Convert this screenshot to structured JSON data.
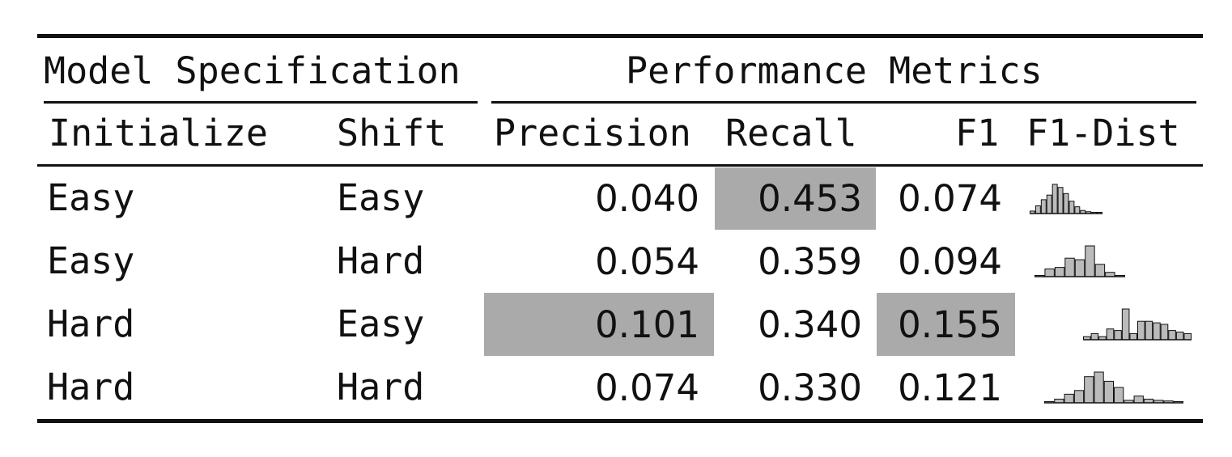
{
  "table": {
    "group_headers": [
      "Model Specification",
      "Performance Metrics"
    ],
    "columns": [
      "Initialize",
      "Shift",
      "Precision",
      "Recall",
      "F1",
      "F1-Dist"
    ],
    "rows": [
      {
        "initialize": "Easy",
        "shift": "Easy",
        "precision": "0.040",
        "recall": "0.453",
        "f1": "0.074"
      },
      {
        "initialize": "Easy",
        "shift": "Hard",
        "precision": "0.054",
        "recall": "0.359",
        "f1": "0.094"
      },
      {
        "initialize": "Hard",
        "shift": "Easy",
        "precision": "0.101",
        "recall": "0.340",
        "f1": "0.155"
      },
      {
        "initialize": "Hard",
        "shift": "Hard",
        "precision": "0.074",
        "recall": "0.330",
        "f1": "0.121"
      }
    ],
    "highlighted_cells": [
      {
        "row": 0,
        "column": "recall"
      },
      {
        "row": 2,
        "column": "precision"
      },
      {
        "row": 2,
        "column": "f1"
      }
    ],
    "f1_distributions": [
      [
        0.08,
        0.25,
        0.45,
        0.6,
        0.95,
        0.85,
        0.65,
        0.4,
        0.22,
        0.1,
        0.06,
        0.04,
        0.03
      ],
      [
        0.04,
        0.25,
        0.3,
        0.6,
        0.55,
        1.0,
        0.4,
        0.14,
        0.04
      ],
      [
        0.1,
        0.2,
        0.1,
        0.35,
        0.3,
        1.0,
        0.2,
        0.6,
        0.6,
        0.55,
        0.5,
        0.3,
        0.25,
        0.2
      ],
      [
        0.04,
        0.12,
        0.28,
        0.4,
        0.85,
        1.0,
        0.7,
        0.5,
        0.08,
        0.22,
        0.12,
        0.08,
        0.06,
        0.04
      ]
    ],
    "colors": {
      "highlight": "#aaaaaa",
      "histogram_fill": "#bbbbbb",
      "rule": "#111111"
    }
  }
}
